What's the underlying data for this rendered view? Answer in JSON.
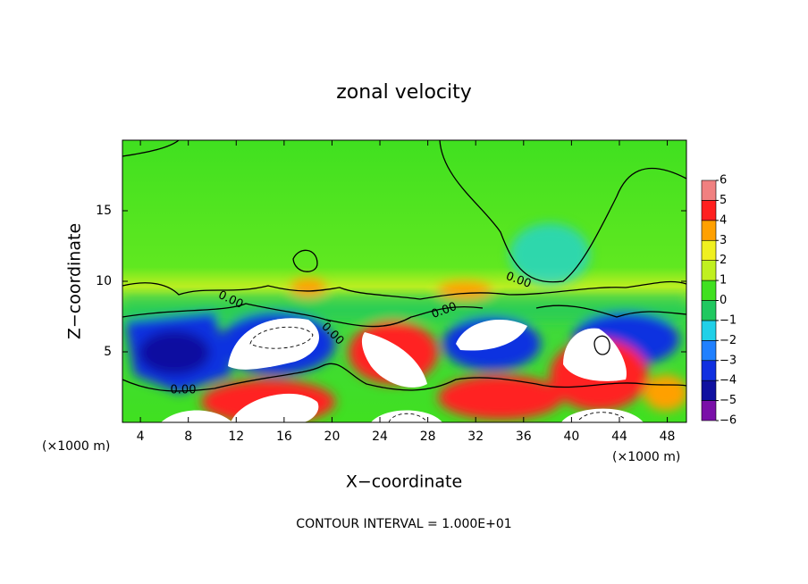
{
  "chart_data": {
    "type": "contour",
    "title": "zonal velocity",
    "xlabel": "X−coordinate",
    "ylabel": "Z−coordinate",
    "x_unit_label": "(×1000 m)",
    "xlim": [
      2.5,
      49.6
    ],
    "ylim": [
      0,
      20
    ],
    "xticks": [
      4,
      8,
      12,
      16,
      20,
      24,
      28,
      32,
      36,
      40,
      44,
      48
    ],
    "yticks": [
      5,
      10,
      15
    ],
    "colorbar": {
      "ticks": [
        {
          "value": -6,
          "label": "−6"
        },
        {
          "value": -5,
          "label": "−5"
        },
        {
          "value": -4,
          "label": "−4"
        },
        {
          "value": -3,
          "label": "−3"
        },
        {
          "value": -2,
          "label": "−2"
        },
        {
          "value": -1,
          "label": "−1"
        },
        0,
        1,
        2,
        3,
        4,
        5,
        6
      ],
      "colors": [
        "#7a10a8",
        "#1010a0",
        "#1030e0",
        "#2080ff",
        "#20d0e8",
        "#20c860",
        "#40e020",
        "#c0f020",
        "#f0f020",
        "#ffa000",
        "#ff2020",
        "#f08080"
      ]
    },
    "contour_labels": [
      "0.00",
      "0.00",
      "0.00",
      "0.00",
      "0.00"
    ],
    "annotation": "CONTOUR INTERVAL = 1.000E+01"
  }
}
